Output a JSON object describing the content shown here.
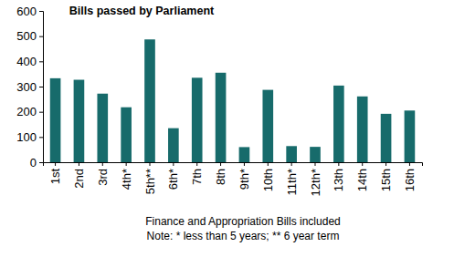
{
  "chart_data": {
    "type": "bar",
    "title": "Bills passed by Parliament",
    "categories": [
      "1st",
      "2nd",
      "3rd",
      "4th*",
      "5th**",
      "6th*",
      "7th",
      "8th",
      "9th*",
      "10th",
      "11th*",
      "12th*",
      "13th",
      "14th",
      "15th",
      "16th"
    ],
    "values": [
      333,
      327,
      272,
      218,
      487,
      135,
      335,
      355,
      60,
      287,
      64,
      61,
      304,
      261,
      192,
      205
    ],
    "color": "#176b6b",
    "ylim": [
      0,
      600
    ],
    "yticks": [
      0,
      100,
      200,
      300,
      400,
      500,
      600
    ],
    "grid": false,
    "annotations": [
      "Finance and Appropriation Bills included",
      "Note: * less than 5 years; ** 6 year term"
    ]
  }
}
